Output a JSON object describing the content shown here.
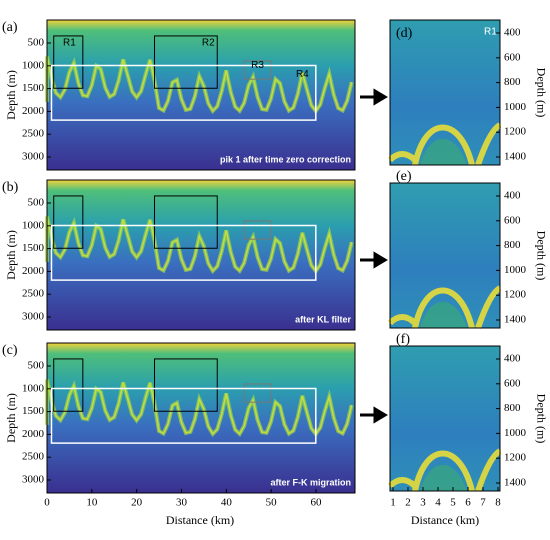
{
  "left_panels": [
    {
      "label": "(a)",
      "annotation": "pik 1 after time zero correction",
      "regions": [
        "R1",
        "R2",
        "R3",
        "R4"
      ]
    },
    {
      "label": "(b)",
      "annotation": "after KL filter"
    },
    {
      "label": "(c)",
      "annotation": "after F-K migration"
    }
  ],
  "left_axis": {
    "ylabel": "Depth (m)",
    "yticks": [
      500,
      1000,
      1500,
      2000,
      2500,
      3000
    ],
    "xlabel": "Distance (km)",
    "xticks": [
      0,
      10,
      20,
      30,
      40,
      50,
      60
    ]
  },
  "right_panels": [
    {
      "label": "(d)",
      "region": "R1"
    },
    {
      "label": "(e)"
    },
    {
      "label": "(f)"
    }
  ],
  "right_axis": {
    "ylabel": "Depth (m)",
    "yticks": [
      400,
      600,
      800,
      1000,
      1200,
      1400
    ],
    "xlabel": "Distance (km)",
    "xticks": [
      1,
      2,
      3,
      4,
      5,
      6,
      7,
      8
    ]
  }
}
